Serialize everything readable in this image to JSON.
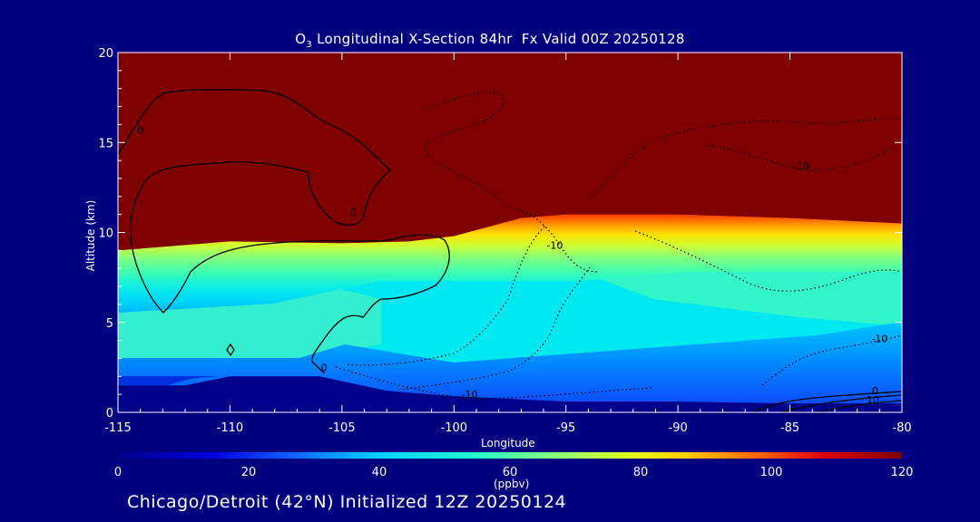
{
  "title_prefix": "O",
  "title_sub": "3",
  "title_rest": " Longitudinal X-Section 84hr  Fx Valid 00Z 20250128",
  "footer": "Chicago/Detroit (42°N) Initialized 12Z 20250124",
  "colors": {
    "background": "#00007f",
    "stratosphere": "#7f0000",
    "boundary_layer": "#00008b",
    "mid_troposphere": "#00e5f5"
  },
  "chart_data": {
    "type": "heatmap",
    "title": "O3 Longitudinal X-Section 84hr  Fx Valid 00Z 20250128",
    "xlabel": "Longitude",
    "ylabel": "Altitude (km)",
    "xlim": [
      -115,
      -80
    ],
    "ylim": [
      0,
      20
    ],
    "x_ticks": [
      -115,
      -110,
      -105,
      -100,
      -95,
      -90,
      -85,
      -80
    ],
    "x_tick_labels": [
      "-115",
      "-110",
      "-105",
      "-100",
      "-95",
      "-90",
      "-85",
      "-80"
    ],
    "y_ticks": [
      0,
      5,
      10,
      15,
      20
    ],
    "y_tick_labels": [
      "0",
      "5",
      "10",
      "15",
      "20"
    ],
    "colorbar": {
      "units": "(ppbv)",
      "range": [
        0,
        120
      ],
      "ticks": [
        0,
        20,
        40,
        60,
        80,
        100,
        120
      ],
      "tick_labels": [
        "0",
        "20",
        "40",
        "60",
        "80",
        "100",
        "120"
      ]
    },
    "tropopause_height_km": [
      {
        "lon": -115,
        "alt": 9.0
      },
      {
        "lon": -110,
        "alt": 9.5
      },
      {
        "lon": -105,
        "alt": 9.4
      },
      {
        "lon": -102,
        "alt": 9.5
      },
      {
        "lon": -100,
        "alt": 9.8
      },
      {
        "lon": -97,
        "alt": 10.8
      },
      {
        "lon": -95,
        "alt": 11.0
      },
      {
        "lon": -90,
        "alt": 11.0
      },
      {
        "lon": -85,
        "alt": 10.8
      },
      {
        "lon": -80,
        "alt": 10.5
      }
    ],
    "surface_low_ozone_top_km": [
      {
        "lon": -115,
        "alt": 1.5
      },
      {
        "lon": -112,
        "alt": 1.5
      },
      {
        "lon": -110,
        "alt": 2.0
      },
      {
        "lon": -106,
        "alt": 2.0
      },
      {
        "lon": -103,
        "alt": 1.2
      },
      {
        "lon": -100,
        "alt": 0.9
      },
      {
        "lon": -95,
        "alt": 0.6
      },
      {
        "lon": -90,
        "alt": 0.6
      },
      {
        "lon": -85,
        "alt": 0.5
      },
      {
        "lon": -80,
        "alt": 0.5
      }
    ],
    "contour_labels": [
      {
        "text": "0",
        "lon": -114,
        "alt": 15.5
      },
      {
        "text": "0",
        "lon": -104.5,
        "alt": 10.9
      },
      {
        "text": "0",
        "lon": -105.8,
        "alt": 2.3
      },
      {
        "text": "-10",
        "lon": -95.5,
        "alt": 9.1
      },
      {
        "text": "-10",
        "lon": -84.5,
        "alt": 13.5
      },
      {
        "text": "-10",
        "lon": -81,
        "alt": 3.9
      },
      {
        "text": "-10",
        "lon": -99.3,
        "alt": 0.8
      },
      {
        "text": "0",
        "lon": -81.2,
        "alt": 1.0
      },
      {
        "text": "10",
        "lon": -81.3,
        "alt": 0.5
      }
    ]
  }
}
